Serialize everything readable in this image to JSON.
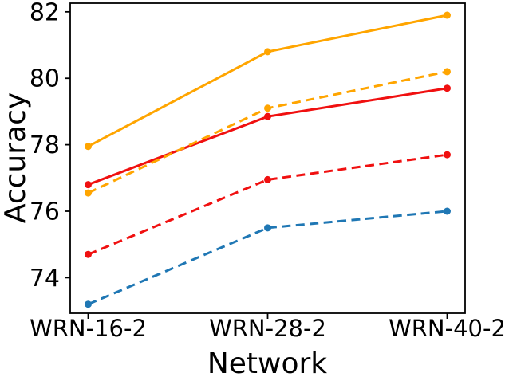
{
  "chart_data": {
    "type": "line",
    "title": "",
    "xlabel": "Network",
    "ylabel": "Accuracy",
    "categories": [
      "WRN-16-2",
      "WRN-28-2",
      "WRN-40-2"
    ],
    "series": [
      {
        "name": "blue-dashed",
        "color": "#1f77b4",
        "dash": true,
        "marker": "circle",
        "values": [
          73.2,
          75.5,
          76.0
        ]
      },
      {
        "name": "red-dashed",
        "color": "#f01010",
        "dash": true,
        "marker": "circle",
        "values": [
          74.7,
          76.95,
          77.7
        ]
      },
      {
        "name": "red-solid",
        "color": "#f01010",
        "dash": false,
        "marker": "circle",
        "values": [
          76.8,
          78.85,
          79.7
        ]
      },
      {
        "name": "orange-dashed",
        "color": "#ffa500",
        "dash": true,
        "marker": "circle",
        "values": [
          76.55,
          79.1,
          80.2
        ]
      },
      {
        "name": "orange-solid",
        "color": "#ffa500",
        "dash": false,
        "marker": "circle",
        "values": [
          77.95,
          80.8,
          81.9
        ]
      }
    ],
    "yticks": [
      74,
      76,
      78,
      80,
      82
    ],
    "ylim": [
      72.93,
      82.26
    ],
    "x_edge_margin_frac": 0.1,
    "grid": false,
    "legend": "none",
    "axis_color": "#000000"
  }
}
